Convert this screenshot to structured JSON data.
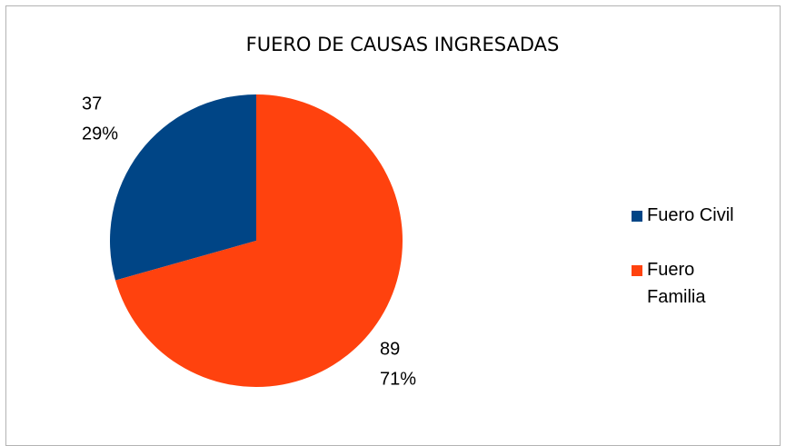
{
  "chart_data": {
    "type": "pie",
    "title": "FUERO DE CAUSAS INGRESADAS",
    "series": [
      {
        "name": "Fuero Civil",
        "color": "#004586",
        "values": [
          37
        ],
        "percent_labels": [
          "29%"
        ]
      },
      {
        "name": "Fuero Familia",
        "color": "#ff420e",
        "values": [
          89
        ],
        "percent_labels": [
          "71%"
        ]
      }
    ]
  }
}
